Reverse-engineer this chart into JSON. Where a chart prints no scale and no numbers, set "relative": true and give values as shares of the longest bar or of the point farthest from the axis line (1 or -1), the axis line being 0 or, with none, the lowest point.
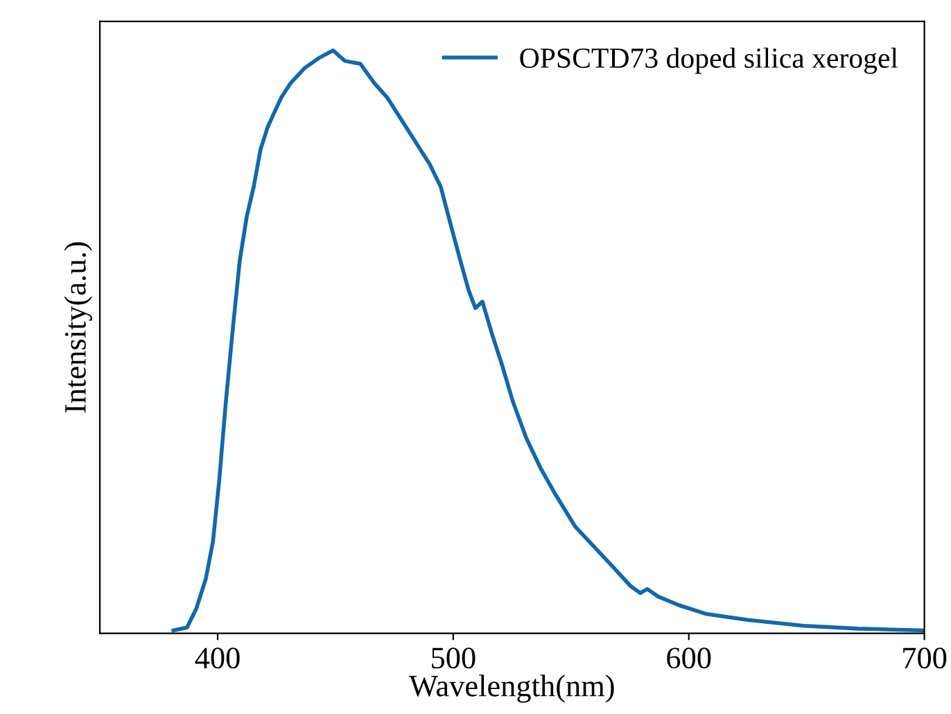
{
  "chart_data": {
    "type": "line",
    "xlabel": "Wavelength(nm)",
    "ylabel": "Intensity(a.u.)",
    "relative": true,
    "xlim": [
      350,
      700
    ],
    "xticks": [
      400,
      500,
      600,
      700
    ],
    "legend": "top right",
    "grid": false,
    "series": [
      {
        "name": "OPSCTD73 doped silica xerogel",
        "color": "#1168ae",
        "x": [
          381.2,
          387,
          391,
          395,
          398,
          400.6,
          403.5,
          406.5,
          409.4,
          412.4,
          415.3,
          418.2,
          421.2,
          424,
          427,
          431,
          437,
          443,
          449,
          454,
          460.6,
          466.5,
          472,
          478,
          484,
          490,
          494.7,
          498.8,
          503,
          506.5,
          509.4,
          512.4,
          516.5,
          520.6,
          525.3,
          531,
          537,
          543,
          551.8,
          560.6,
          569.4,
          575.3,
          579.4,
          582.4,
          587,
          596,
          607.6,
          625,
          648.8,
          672,
          700
        ],
        "values": [
          0.005,
          0.01,
          0.043,
          0.094,
          0.157,
          0.259,
          0.398,
          0.525,
          0.64,
          0.716,
          0.766,
          0.83,
          0.868,
          0.893,
          0.919,
          0.944,
          0.97,
          0.987,
          1.0,
          0.982,
          0.977,
          0.944,
          0.919,
          0.881,
          0.843,
          0.805,
          0.766,
          0.703,
          0.64,
          0.589,
          0.558,
          0.569,
          0.513,
          0.462,
          0.398,
          0.335,
          0.284,
          0.241,
          0.183,
          0.145,
          0.107,
          0.081,
          0.069,
          0.076,
          0.063,
          0.048,
          0.033,
          0.023,
          0.013,
          0.008,
          0.005
        ]
      }
    ]
  }
}
